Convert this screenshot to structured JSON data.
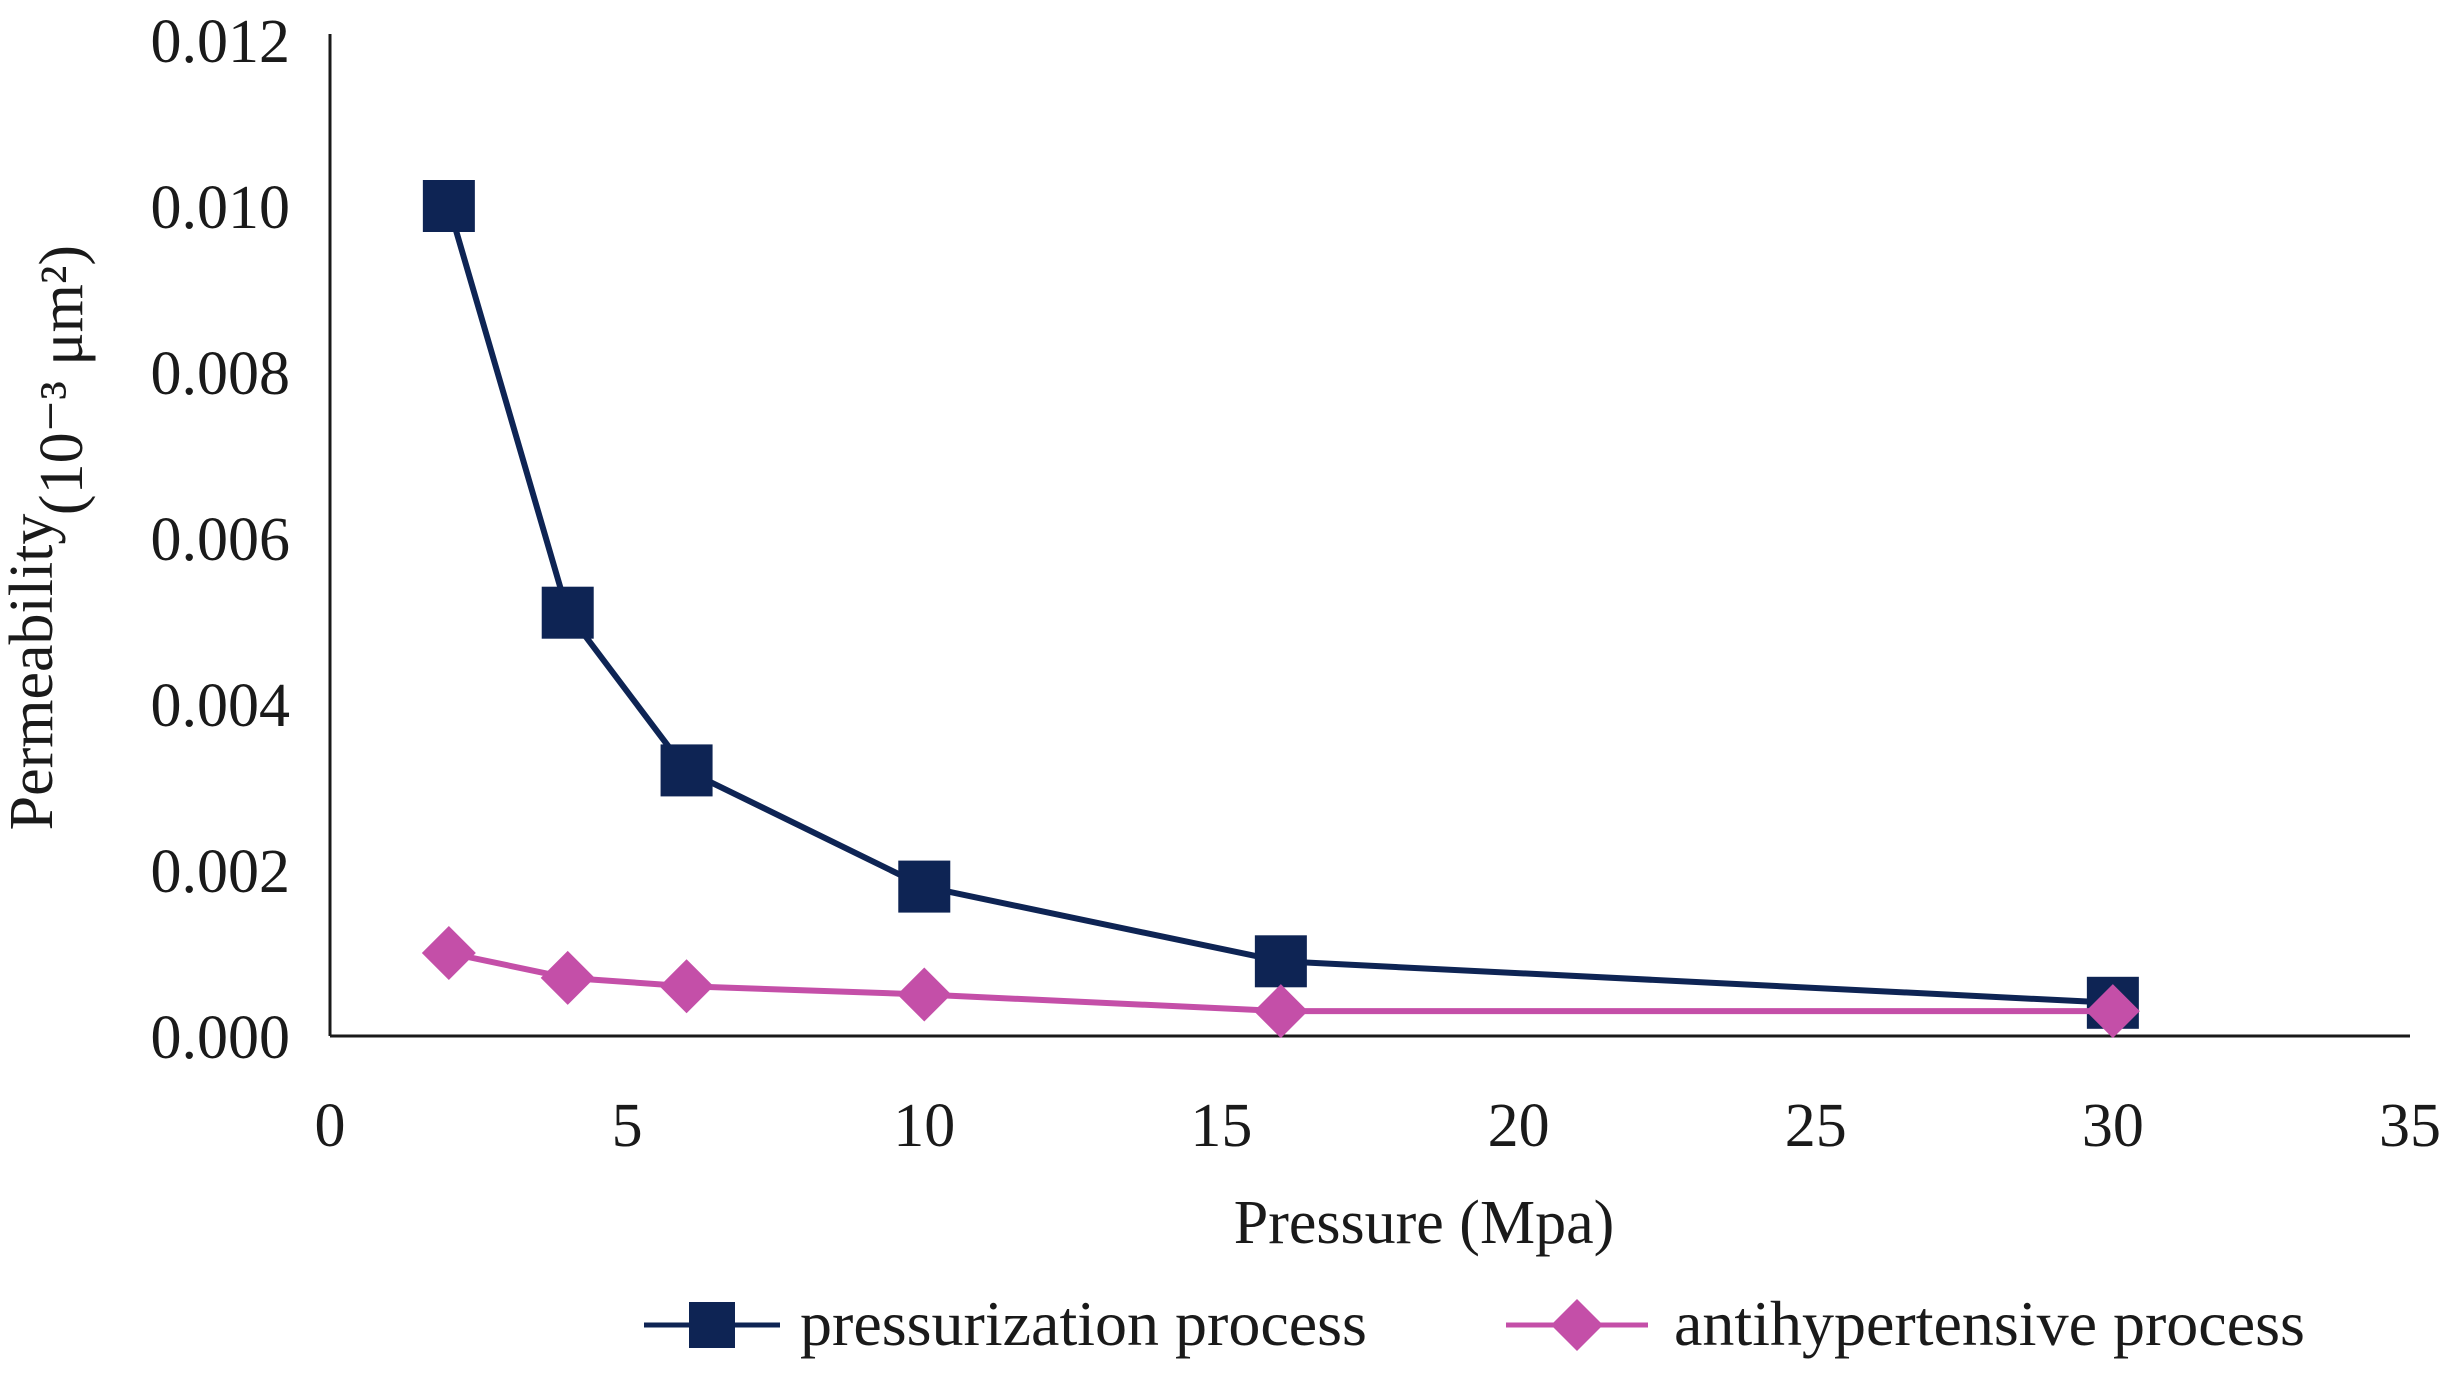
{
  "chart_data": {
    "type": "line",
    "title": "",
    "xlabel": "Pressure (Mpa)",
    "ylabel": "Permeability (10⁻³ μm²)",
    "ylabel_main": "Permeability",
    "ylabel_unit": "(10⁻³ μm²)",
    "xlim": [
      0,
      35
    ],
    "ylim": [
      0,
      0.012
    ],
    "x_ticks": [
      "0",
      "5",
      "10",
      "15",
      "20",
      "25",
      "30",
      "35"
    ],
    "y_ticks": [
      "0.000",
      "0.002",
      "0.004",
      "0.006",
      "0.008",
      "0.010",
      "0.012"
    ],
    "grid": false,
    "legend_position": "bottom",
    "series": [
      {
        "name": "pressurization process",
        "color": "#0e2454",
        "marker": "square",
        "x": [
          2,
          4,
          6,
          10,
          16,
          30
        ],
        "y": [
          0.01,
          0.0051,
          0.0032,
          0.0018,
          0.0009,
          0.0004
        ]
      },
      {
        "name": "antihypertensive process",
        "color": "#c44fa8",
        "marker": "diamond",
        "x": [
          2,
          4,
          6,
          10,
          16,
          30
        ],
        "y": [
          0.001,
          0.0007,
          0.0006,
          0.0005,
          0.0003,
          0.0003
        ]
      }
    ]
  }
}
